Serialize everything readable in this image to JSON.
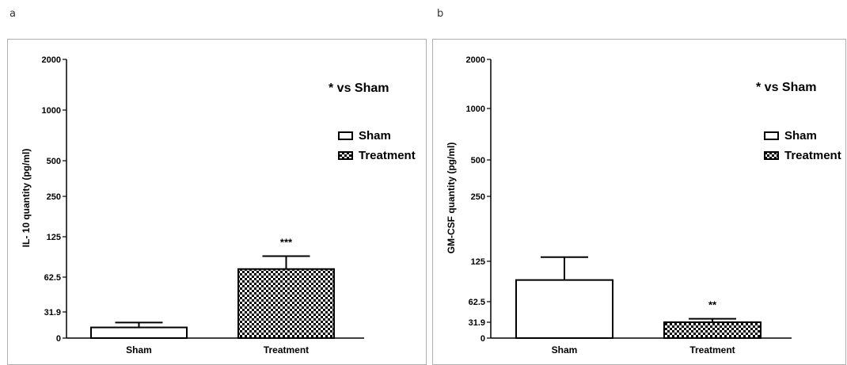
{
  "chart_data": [
    {
      "type": "bar",
      "panel_label": "a",
      "ylabel": "IL- 10 quantity (pg/ml)",
      "yscale": "log2-like",
      "yticks": [
        "0",
        "31.9",
        "62.5",
        "125",
        "250",
        "500",
        "1000",
        "2000"
      ],
      "categories": [
        "Sham",
        "Treatment"
      ],
      "values": [
        13,
        75
      ],
      "errors": [
        6,
        20
      ],
      "patterns": [
        "white",
        "checker"
      ],
      "significance": [
        "",
        "***"
      ],
      "annotation": "* vs Sham",
      "legend": [
        "Sham",
        "Treatment"
      ],
      "legend_position": "right"
    },
    {
      "type": "bar",
      "panel_label": "b",
      "ylabel": "GM-CSF quantity (pg/ml)",
      "yscale": "piecewise",
      "yticks": [
        "0",
        "31.9",
        "62.5",
        "125",
        "250",
        "500",
        "1000",
        "2000"
      ],
      "categories": [
        "Sham",
        "Treatment"
      ],
      "values": [
        96,
        32
      ],
      "errors": [
        37,
        5
      ],
      "patterns": [
        "white",
        "checker"
      ],
      "significance": [
        "",
        "**"
      ],
      "annotation": "* vs Sham",
      "legend": [
        "Sham",
        "Treatment"
      ],
      "legend_position": "right"
    }
  ]
}
